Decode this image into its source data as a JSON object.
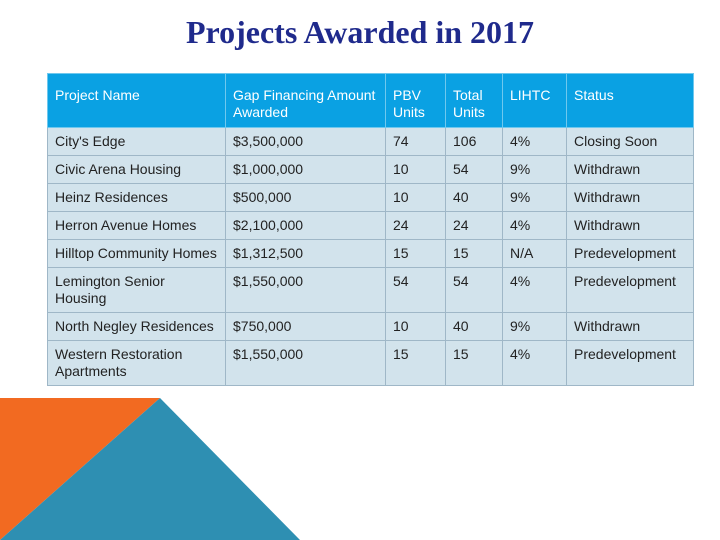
{
  "title": "Projects Awarded in 2017",
  "columns": [
    "Project Name",
    "Gap Financing Amount Awarded",
    "PBV Units",
    "Total Units",
    "LIHTC",
    "Status"
  ],
  "rows": [
    [
      "City's Edge",
      "$3,500,000",
      "74",
      "106",
      "4%",
      "Closing Soon"
    ],
    [
      "Civic Arena Housing",
      "$1,000,000",
      "10",
      "54",
      "9%",
      "Withdrawn"
    ],
    [
      "Heinz Residences",
      "$500,000",
      "10",
      "40",
      "9%",
      "Withdrawn"
    ],
    [
      "Herron Avenue Homes",
      "$2,100,000",
      "24",
      "24",
      "4%",
      "Withdrawn"
    ],
    [
      "Hilltop Community Homes",
      "$1,312,500",
      "15",
      "15",
      "N/A",
      "Predevelopment"
    ],
    [
      "Lemington Senior Housing",
      "$1,550,000",
      "54",
      "54",
      "4%",
      "Predevelopment"
    ],
    [
      "North Negley Residences",
      "$750,000",
      "10",
      "40",
      "9%",
      "Withdrawn"
    ],
    [
      "Western Restoration Apartments",
      "$1,550,000",
      "15",
      "15",
      "4%",
      "Predevelopment"
    ]
  ],
  "colors": {
    "title": "#1f2a8c",
    "header_bg": "#0aa1e3",
    "row_bg": "#d2e3ec",
    "decor_orange": "#f26a21",
    "decor_teal": "#2e8fb2"
  }
}
